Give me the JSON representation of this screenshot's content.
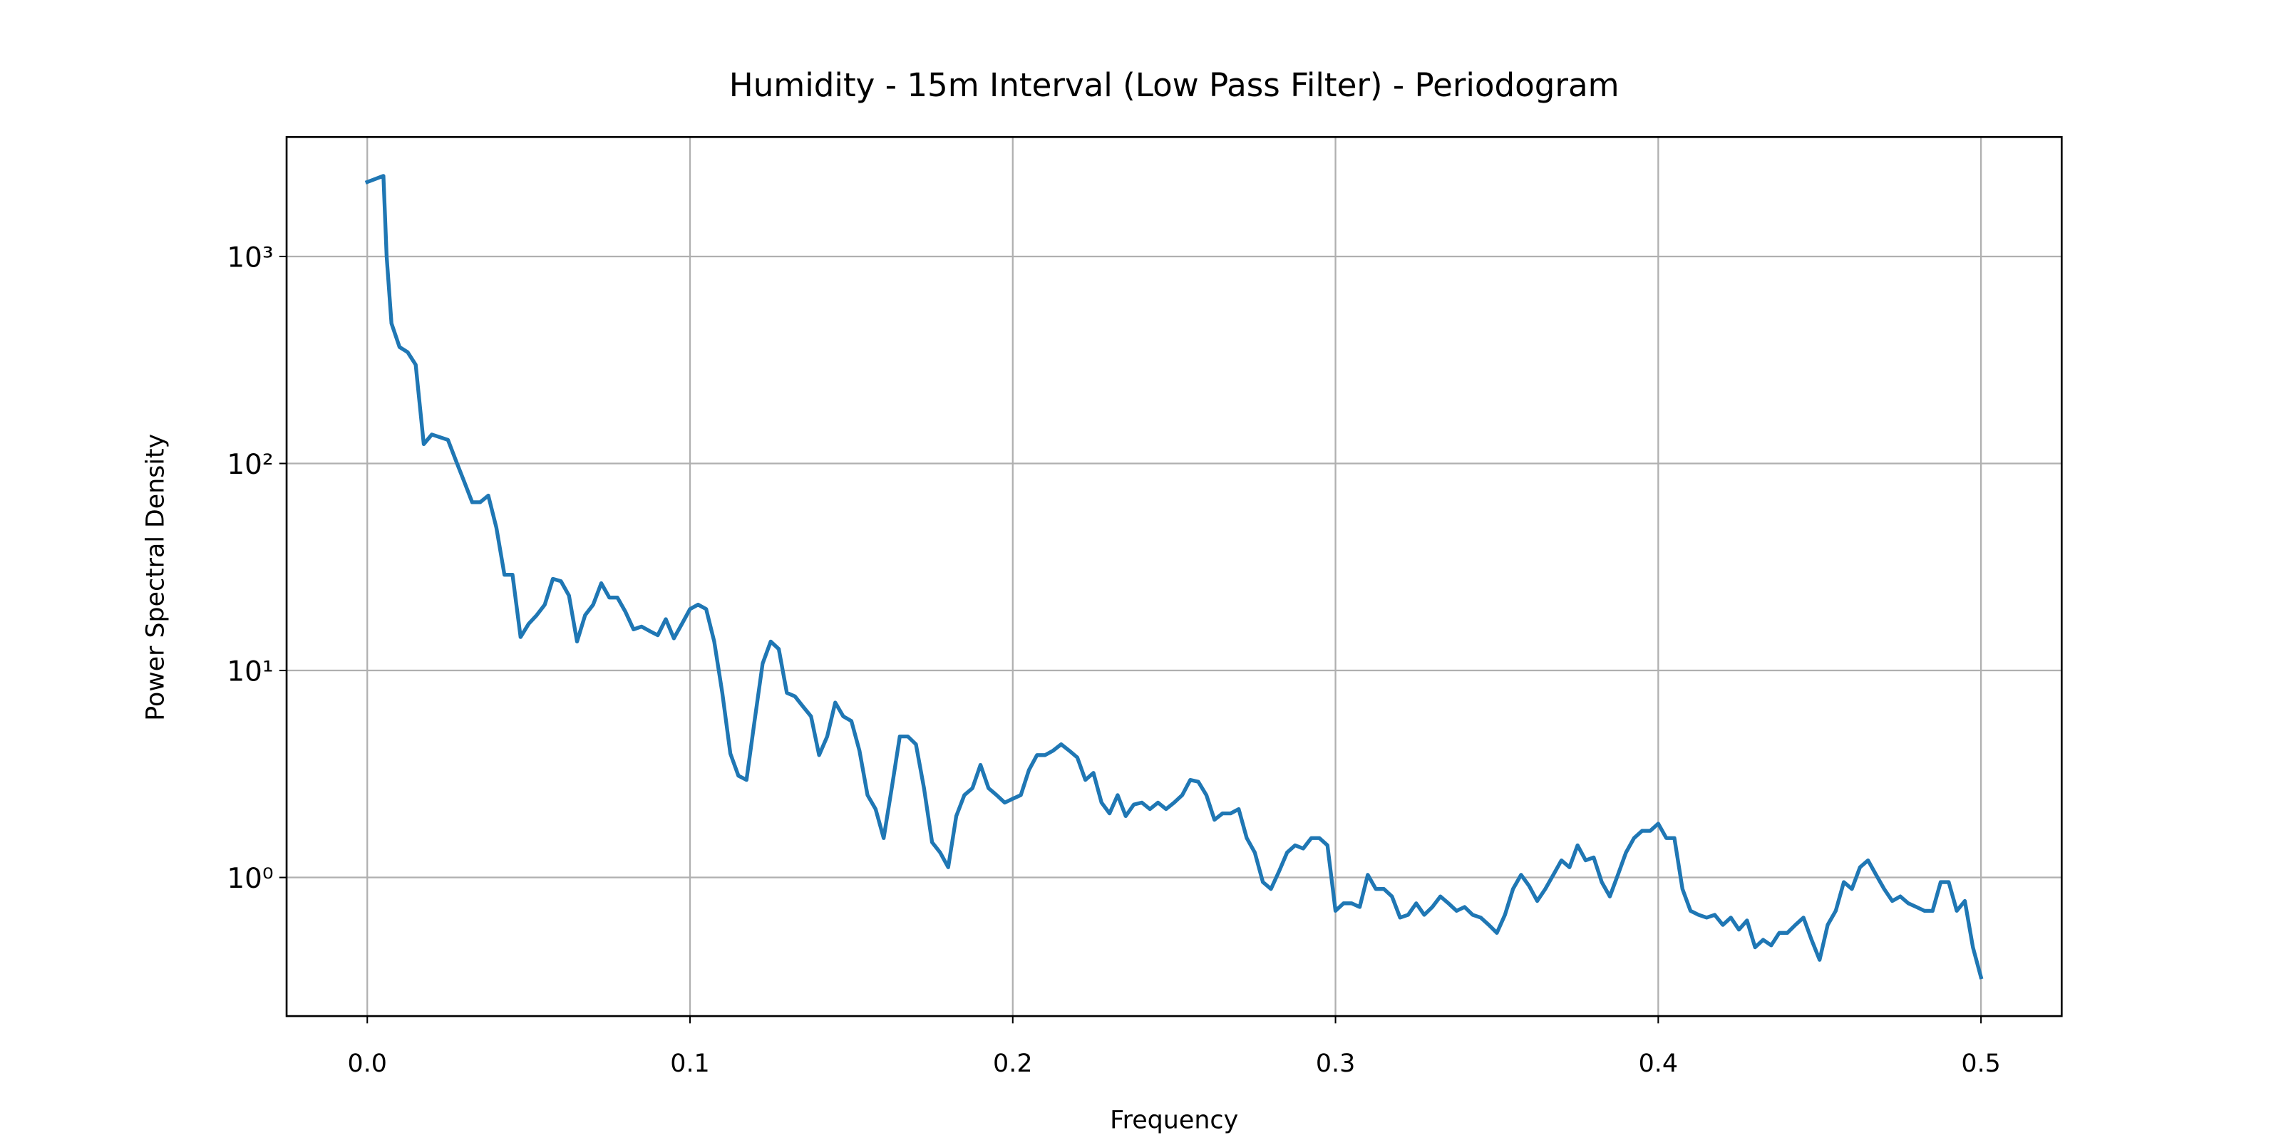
{
  "chart_data": {
    "type": "line",
    "title": "Humidity - 15m Interval (Low Pass Filter) - Periodogram",
    "x_label": "Frequency",
    "y_label": "Power Spectral Density",
    "color": "#1f77b4",
    "y_scale": "log",
    "grid": true,
    "xlim": [
      -0.025,
      0.525
    ],
    "ylim": [
      0.214,
      3776
    ],
    "xticks": [
      {
        "value": 0,
        "label": "0.0"
      },
      0.1,
      0.2,
      0.3,
      0.4,
      0.5
    ],
    "yticks": [
      {
        "value": 1,
        "label": "10⁰"
      },
      {
        "value": 10,
        "label": "10¹"
      },
      {
        "value": 100,
        "label": "10²"
      },
      {
        "value": 1000,
        "label": "10³"
      }
    ],
    "x": [
      0,
      0.005,
      0.006,
      0.0075,
      0.01,
      0.0125,
      0.015,
      0.0175,
      0.02,
      0.025,
      0.0275,
      0.03,
      0.0325,
      0.035,
      0.0375,
      0.04,
      0.0425,
      0.045,
      0.0475,
      0.05,
      0.0525,
      0.055,
      0.0575,
      0.06,
      0.0625,
      0.065,
      0.0675,
      0.07,
      0.0725,
      0.075,
      0.0775,
      0.08,
      0.0825,
      0.085,
      0.0875,
      0.09,
      0.0925,
      0.095,
      0.0975,
      0.1,
      0.1025,
      0.105,
      0.1075,
      0.11,
      0.1125,
      0.115,
      0.1175,
      0.12,
      0.1225,
      0.125,
      0.1275,
      0.13,
      0.1325,
      0.135,
      0.1375,
      0.14,
      0.1425,
      0.145,
      0.1475,
      0.15,
      0.1525,
      0.155,
      0.1575,
      0.16,
      0.1625,
      0.165,
      0.1675,
      0.17,
      0.1725,
      0.175,
      0.1775,
      0.18,
      0.1825,
      0.185,
      0.1875,
      0.19,
      0.1925,
      0.195,
      0.1975,
      0.2,
      0.2025,
      0.205,
      0.2075,
      0.21,
      0.2125,
      0.215,
      0.2175,
      0.22,
      0.2225,
      0.225,
      0.2275,
      0.23,
      0.2325,
      0.235,
      0.2375,
      0.24,
      0.2425,
      0.245,
      0.2475,
      0.25,
      0.2525,
      0.255,
      0.2575,
      0.26,
      0.2625,
      0.265,
      0.2675,
      0.27,
      0.2725,
      0.275,
      0.2775,
      0.28,
      0.2825,
      0.285,
      0.2875,
      0.29,
      0.2925,
      0.295,
      0.2975,
      0.3,
      0.3025,
      0.305,
      0.3075,
      0.31,
      0.3125,
      0.315,
      0.3175,
      0.32,
      0.3225,
      0.325,
      0.3275,
      0.33,
      0.3325,
      0.335,
      0.3375,
      0.34,
      0.3425,
      0.345,
      0.3475,
      0.35,
      0.3525,
      0.355,
      0.3575,
      0.36,
      0.3625,
      0.365,
      0.3675,
      0.37,
      0.3725,
      0.375,
      0.3775,
      0.38,
      0.3825,
      0.385,
      0.3875,
      0.39,
      0.3925,
      0.395,
      0.3975,
      0.4,
      0.4025,
      0.405,
      0.4075,
      0.41,
      0.4125,
      0.415,
      0.4175,
      0.42,
      0.4225,
      0.425,
      0.4275,
      0.43,
      0.4325,
      0.435,
      0.4375,
      0.44,
      0.4425,
      0.445,
      0.4475,
      0.45,
      0.4525,
      0.455,
      0.4575,
      0.46,
      0.4625,
      0.465,
      0.4675,
      0.47,
      0.4725,
      0.475,
      0.4775,
      0.48,
      0.4825,
      0.485,
      0.4875,
      0.49,
      0.4925,
      0.495,
      0.4975,
      0.5
    ],
    "values": [
      2290,
      2450,
      1000,
      475,
      365,
      345,
      300,
      124,
      138,
      130,
      103,
      82,
      65,
      65,
      70,
      49,
      29,
      29,
      14.5,
      16.8,
      18.5,
      20.8,
      27.7,
      27,
      23,
      13.8,
      18.5,
      20.8,
      26.4,
      22.5,
      22.5,
      19.2,
      15.8,
      16.3,
      15.5,
      14.8,
      17.7,
      14.3,
      16.8,
      19.8,
      20.8,
      19.8,
      13.8,
      7.8,
      3.97,
      3.1,
      2.96,
      5.7,
      10.8,
      13.8,
      12.7,
      7.8,
      7.5,
      6.7,
      6.0,
      3.9,
      4.8,
      7.0,
      6.0,
      5.7,
      4.1,
      2.5,
      2.14,
      1.55,
      2.7,
      4.8,
      4.8,
      4.4,
      2.7,
      1.48,
      1.32,
      1.12,
      1.98,
      2.5,
      2.7,
      3.5,
      2.7,
      2.5,
      2.3,
      2.4,
      2.5,
      3.3,
      3.9,
      3.9,
      4.1,
      4.4,
      4.1,
      3.8,
      2.96,
      3.2,
      2.3,
      2.04,
      2.5,
      1.98,
      2.25,
      2.3,
      2.14,
      2.3,
      2.14,
      2.3,
      2.5,
      2.96,
      2.9,
      2.5,
      1.9,
      2.04,
      2.04,
      2.14,
      1.55,
      1.32,
      0.95,
      0.88,
      1.07,
      1.32,
      1.43,
      1.38,
      1.55,
      1.55,
      1.43,
      0.69,
      0.75,
      0.75,
      0.72,
      1.03,
      0.88,
      0.88,
      0.81,
      0.64,
      0.66,
      0.75,
      0.66,
      0.72,
      0.81,
      0.75,
      0.69,
      0.72,
      0.66,
      0.64,
      0.59,
      0.54,
      0.66,
      0.88,
      1.03,
      0.91,
      0.77,
      0.88,
      1.03,
      1.21,
      1.12,
      1.43,
      1.21,
      1.25,
      0.95,
      0.81,
      1.03,
      1.32,
      1.55,
      1.68,
      1.68,
      1.82,
      1.55,
      1.55,
      0.88,
      0.69,
      0.66,
      0.64,
      0.66,
      0.59,
      0.64,
      0.56,
      0.62,
      0.46,
      0.5,
      0.47,
      0.54,
      0.54,
      0.59,
      0.64,
      0.5,
      0.4,
      0.59,
      0.69,
      0.95,
      0.88,
      1.12,
      1.21,
      1.03,
      0.88,
      0.77,
      0.81,
      0.75,
      0.72,
      0.69,
      0.69,
      0.95,
      0.95,
      0.69,
      0.77,
      0.46,
      0.33
    ]
  }
}
